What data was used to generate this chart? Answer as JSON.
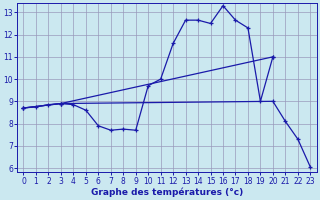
{
  "xlabel": "Graphe des températures (°c)",
  "bg_color": "#cbe8f0",
  "grid_color": "#9999bb",
  "line_color": "#1a1aaa",
  "xlim": [
    -0.5,
    23.5
  ],
  "ylim": [
    5.8,
    13.4
  ],
  "xticks": [
    0,
    1,
    2,
    3,
    4,
    5,
    6,
    7,
    8,
    9,
    10,
    11,
    12,
    13,
    14,
    15,
    16,
    17,
    18,
    19,
    20,
    21,
    22,
    23
  ],
  "yticks": [
    6,
    7,
    8,
    9,
    10,
    11,
    12,
    13
  ],
  "line1_x": [
    0,
    1,
    2,
    3,
    4,
    5,
    6,
    7,
    8,
    9,
    10,
    11,
    12,
    13,
    14,
    15,
    16,
    17,
    18,
    19,
    20
  ],
  "line1_y": [
    8.7,
    8.75,
    8.85,
    8.9,
    8.85,
    8.6,
    7.9,
    7.7,
    7.75,
    7.7,
    9.7,
    10.0,
    11.6,
    12.65,
    12.65,
    12.5,
    13.3,
    12.65,
    12.3,
    9.0,
    11.0
  ],
  "line2_x": [
    0,
    3,
    20
  ],
  "line2_y": [
    8.7,
    8.9,
    11.0
  ],
  "line3_x": [
    0,
    3,
    20,
    21,
    22,
    23
  ],
  "line3_y": [
    8.7,
    8.9,
    9.0,
    8.1,
    7.3,
    6.05
  ],
  "tick_fontsize": 5.5,
  "xlabel_fontsize": 6.5
}
